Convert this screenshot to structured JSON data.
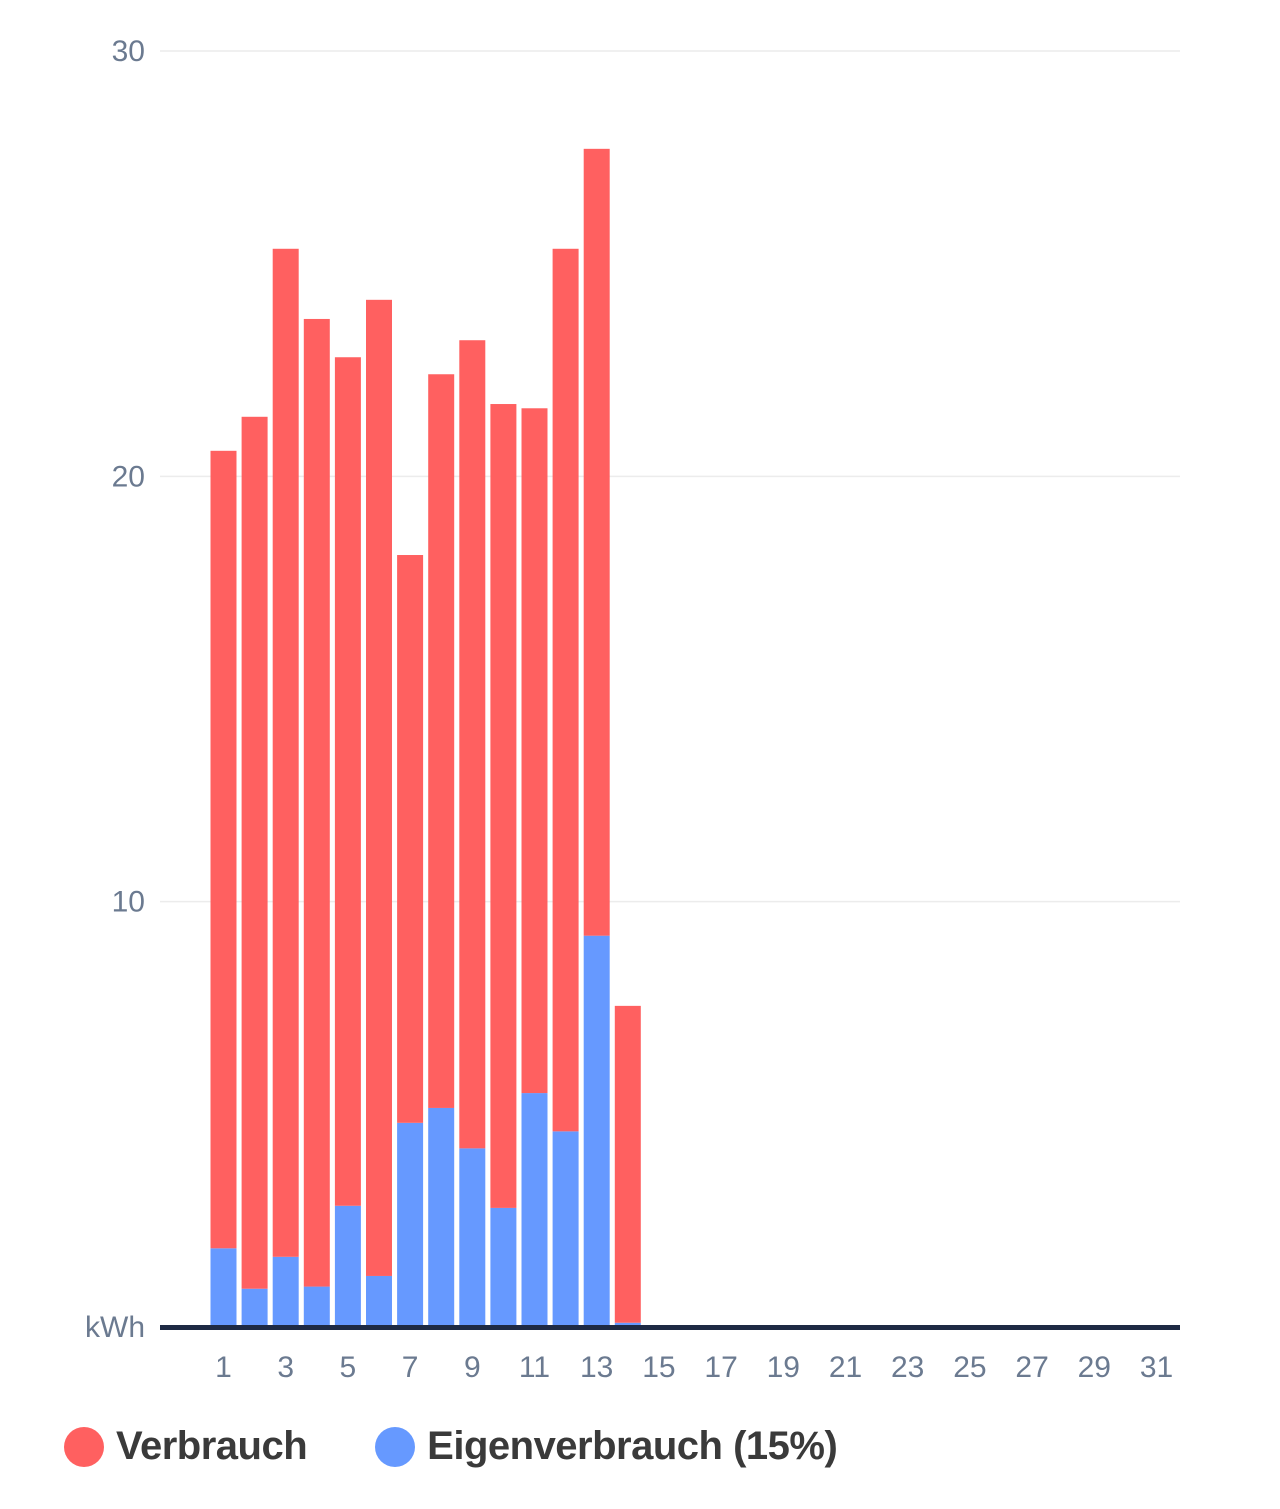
{
  "colors": {
    "verbrauch": "#ff6060",
    "eigenverbrauch": "#6699ff",
    "axis": "#1e2a44",
    "grid": "#ececec",
    "tick_text": "#6b7a90"
  },
  "legend": [
    {
      "key": "verbrauch",
      "label": "Verbrauch"
    },
    {
      "key": "eigenverbrauch",
      "label": "Eigenverbrauch (15%)"
    }
  ],
  "chart_data": {
    "type": "bar",
    "stacked": true,
    "ylabel": "kWh",
    "ylim": [
      0,
      30
    ],
    "yticks": [
      10,
      20,
      30
    ],
    "x": [
      1,
      2,
      3,
      4,
      5,
      6,
      7,
      8,
      9,
      10,
      11,
      12,
      13,
      14,
      15,
      16,
      17,
      18,
      19,
      20,
      21,
      22,
      23,
      24,
      25,
      26,
      27,
      28,
      29,
      30,
      31
    ],
    "xtick_labels": [
      "1",
      "3",
      "5",
      "7",
      "9",
      "11",
      "13",
      "15",
      "17",
      "19",
      "21",
      "23",
      "25",
      "27",
      "29",
      "31"
    ],
    "grid": true,
    "legend_position": "bottom-left",
    "series": [
      {
        "name": "Eigenverbrauch (15%)",
        "color_key": "eigenverbrauch",
        "values": [
          1.85,
          0.9,
          1.65,
          0.95,
          2.85,
          1.2,
          4.8,
          5.15,
          4.2,
          2.8,
          5.5,
          4.6,
          9.2,
          0.1,
          0,
          0,
          0,
          0,
          0,
          0,
          0,
          0,
          0,
          0,
          0,
          0,
          0,
          0,
          0,
          0,
          0
        ]
      },
      {
        "name": "Verbrauch",
        "color_key": "verbrauch",
        "values": [
          18.75,
          20.5,
          23.7,
          22.75,
          19.95,
          22.95,
          13.35,
          17.25,
          19.0,
          18.9,
          16.1,
          20.75,
          18.5,
          7.45,
          0,
          0,
          0,
          0,
          0,
          0,
          0,
          0,
          0,
          0,
          0,
          0,
          0,
          0,
          0,
          0,
          0
        ]
      }
    ]
  }
}
